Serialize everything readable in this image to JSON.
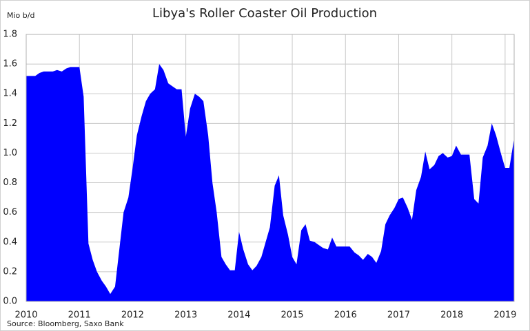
{
  "chart_data": {
    "type": "area",
    "title": "Libya's Roller Coaster Oil Production",
    "y_label": "Mio b/d",
    "source": "Source: Bloomberg, Saxo Bank",
    "color": "#0000ff",
    "grid": true,
    "xlim": [
      2010,
      2019.17
    ],
    "xticks": [
      2010,
      2011,
      2012,
      2013,
      2014,
      2015,
      2016,
      2017,
      2018,
      2019
    ],
    "ylim": [
      0,
      1.8
    ],
    "yticks": [
      {
        "value": 0,
        "label": "0.0"
      },
      0.2,
      0.4,
      0.6,
      0.8,
      {
        "value": 1,
        "label": "1.0"
      },
      1.2,
      1.4,
      1.6,
      1.8
    ],
    "x": [
      2010,
      2010.08,
      2010.17,
      2010.25,
      2010.33,
      2010.42,
      2010.5,
      2010.58,
      2010.67,
      2010.75,
      2010.83,
      2010.92,
      2011,
      2011.08,
      2011.17,
      2011.25,
      2011.33,
      2011.42,
      2011.5,
      2011.58,
      2011.67,
      2011.75,
      2011.83,
      2011.92,
      2012,
      2012.08,
      2012.17,
      2012.25,
      2012.33,
      2012.42,
      2012.5,
      2012.58,
      2012.67,
      2012.75,
      2012.83,
      2012.92,
      2013,
      2013.08,
      2013.17,
      2013.25,
      2013.33,
      2013.42,
      2013.5,
      2013.58,
      2013.67,
      2013.75,
      2013.83,
      2013.92,
      2014,
      2014.08,
      2014.17,
      2014.25,
      2014.33,
      2014.42,
      2014.5,
      2014.58,
      2014.67,
      2014.75,
      2014.83,
      2014.92,
      2015,
      2015.08,
      2015.17,
      2015.25,
      2015.33,
      2015.42,
      2015.5,
      2015.58,
      2015.67,
      2015.75,
      2015.83,
      2015.92,
      2016,
      2016.08,
      2016.17,
      2016.25,
      2016.33,
      2016.42,
      2016.5,
      2016.58,
      2016.67,
      2016.75,
      2016.83,
      2016.92,
      2017,
      2017.08,
      2017.17,
      2017.25,
      2017.33,
      2017.42,
      2017.5,
      2017.58,
      2017.67,
      2017.75,
      2017.83,
      2017.92,
      2018,
      2018.08,
      2018.17,
      2018.25,
      2018.33,
      2018.42,
      2018.5,
      2018.58,
      2018.67,
      2018.75,
      2018.83,
      2018.92,
      2019,
      2019.08,
      2019.17
    ],
    "values": [
      1.52,
      1.52,
      1.52,
      1.54,
      1.55,
      1.55,
      1.55,
      1.56,
      1.55,
      1.57,
      1.58,
      1.58,
      1.58,
      1.38,
      0.39,
      0.28,
      0.2,
      0.14,
      0.1,
      0.05,
      0.1,
      0.35,
      0.6,
      0.7,
      0.9,
      1.12,
      1.25,
      1.35,
      1.4,
      1.43,
      1.6,
      1.56,
      1.47,
      1.45,
      1.43,
      1.43,
      1.11,
      1.3,
      1.4,
      1.38,
      1.35,
      1.12,
      0.8,
      0.6,
      0.3,
      0.25,
      0.21,
      0.21,
      0.47,
      0.35,
      0.25,
      0.21,
      0.24,
      0.3,
      0.4,
      0.5,
      0.78,
      0.85,
      0.58,
      0.45,
      0.3,
      0.25,
      0.48,
      0.52,
      0.41,
      0.4,
      0.38,
      0.36,
      0.35,
      0.43,
      0.37,
      0.37,
      0.37,
      0.37,
      0.33,
      0.31,
      0.28,
      0.32,
      0.3,
      0.26,
      0.34,
      0.52,
      0.58,
      0.63,
      0.69,
      0.7,
      0.63,
      0.55,
      0.75,
      0.84,
      1.01,
      0.89,
      0.92,
      0.98,
      1.0,
      0.97,
      0.98,
      1.05,
      0.99,
      0.99,
      0.99,
      0.69,
      0.66,
      0.97,
      1.05,
      1.2,
      1.12,
      1.0,
      0.9,
      0.9,
      1.1
    ]
  }
}
